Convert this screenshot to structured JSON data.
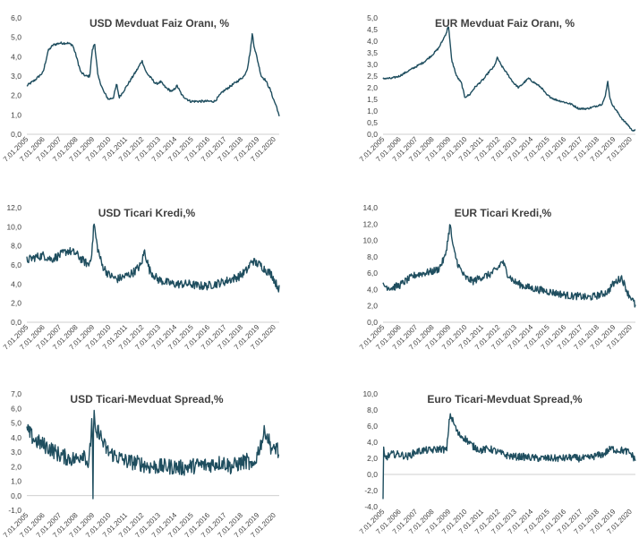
{
  "chart_data": [
    {
      "type": "line",
      "title": "USD  Mevduat Faiz Oranı, %",
      "xlabel": "",
      "ylabel": "",
      "ylim": [
        0,
        6
      ],
      "yticks": [
        "0,0",
        "1,0",
        "2,0",
        "3,0",
        "4,0",
        "5,0",
        "6,0"
      ],
      "xticks": [
        "7.01.2005",
        "7.01.2006",
        "7.01.2007",
        "7.01.2008",
        "7.01.2009",
        "7.01.2010",
        "7.01.2011",
        "7.01.2012",
        "7.01.2013",
        "7.01.2014",
        "7.01.2015",
        "7.01.2016",
        "7.01.2017",
        "7.01.2018",
        "7.01.2019",
        "7.01.2020"
      ],
      "xrange": [
        2005.0,
        2020.45
      ],
      "color": "#1f4e5f",
      "series": [
        {
          "x": [
            2005.0,
            2005.5,
            2006.0,
            2006.3,
            2006.6,
            2007.0,
            2007.5,
            2007.8,
            2008.0,
            2008.3,
            2008.6,
            2008.85,
            2009.0,
            2009.15,
            2009.35,
            2009.7,
            2010.0,
            2010.3,
            2010.5,
            2010.65,
            2010.9,
            2011.2,
            2011.5,
            2011.8,
            2012.05,
            2012.3,
            2012.6,
            2012.9,
            2013.2,
            2013.5,
            2013.9,
            2014.2,
            2014.5,
            2015.0,
            2015.5,
            2016.0,
            2016.5,
            2016.8,
            2017.0,
            2017.5,
            2018.0,
            2018.3,
            2018.5,
            2018.7,
            2018.8,
            2018.9,
            2019.1,
            2019.35,
            2019.6,
            2019.9,
            2020.1,
            2020.3,
            2020.45
          ],
          "y": [
            2.5,
            2.8,
            3.2,
            4.3,
            4.6,
            4.7,
            4.7,
            4.6,
            4.1,
            3.2,
            3.0,
            3.0,
            4.3,
            4.7,
            3.0,
            2.2,
            1.8,
            1.9,
            2.6,
            1.9,
            2.2,
            2.6,
            3.0,
            3.4,
            3.8,
            3.2,
            2.9,
            2.6,
            2.7,
            2.4,
            2.2,
            2.5,
            2.0,
            1.7,
            1.7,
            1.7,
            1.7,
            2.0,
            2.2,
            2.5,
            2.8,
            3.0,
            3.4,
            4.4,
            5.2,
            4.6,
            3.9,
            3.0,
            2.8,
            2.3,
            1.8,
            1.4,
            0.9
          ]
        }
      ]
    },
    {
      "type": "line",
      "title": "EUR Mevduat Faiz Oranı, %",
      "xlabel": "",
      "ylabel": "",
      "ylim": [
        0,
        5
      ],
      "yticks": [
        "0,0",
        "0,5",
        "1,0",
        "1,5",
        "2,0",
        "2,5",
        "3,0",
        "3,5",
        "4,0",
        "4,5",
        "5,0"
      ],
      "xticks": [
        "7.01.2005",
        "7.01.2006",
        "7.01.2007",
        "7.01.2008",
        "7.01.2009",
        "7.01.2010",
        "7.01.2011",
        "7.01.2012",
        "7.01.2013",
        "7.01.2014",
        "7.01.2015",
        "7.01.2016",
        "7.01.2017",
        "7.01.2018",
        "7.01.2019",
        "7.01.2020"
      ],
      "xrange": [
        2005.0,
        2020.45
      ],
      "color": "#1f4e5f",
      "series": [
        {
          "x": [
            2005.0,
            2005.5,
            2006.0,
            2006.5,
            2007.0,
            2007.5,
            2008.0,
            2008.4,
            2008.7,
            2008.9,
            2009.0,
            2009.2,
            2009.5,
            2009.8,
            2010.0,
            2010.3,
            2010.6,
            2010.9,
            2011.2,
            2011.5,
            2011.8,
            2012.0,
            2012.2,
            2012.5,
            2012.8,
            2013.0,
            2013.3,
            2013.6,
            2013.9,
            2014.3,
            2014.7,
            2015.0,
            2015.5,
            2016.0,
            2016.5,
            2017.0,
            2017.5,
            2018.0,
            2018.4,
            2018.6,
            2018.75,
            2018.9,
            2019.1,
            2019.4,
            2019.7,
            2020.0,
            2020.2,
            2020.45
          ],
          "y": [
            2.4,
            2.4,
            2.5,
            2.7,
            2.9,
            3.1,
            3.4,
            3.7,
            4.1,
            4.4,
            4.7,
            3.2,
            2.5,
            2.2,
            1.6,
            1.7,
            2.0,
            2.2,
            2.4,
            2.7,
            2.9,
            3.3,
            3.0,
            2.7,
            2.4,
            2.2,
            2.0,
            2.2,
            2.4,
            2.2,
            2.0,
            1.7,
            1.5,
            1.4,
            1.3,
            1.1,
            1.1,
            1.2,
            1.3,
            1.6,
            2.3,
            1.5,
            1.2,
            0.9,
            0.6,
            0.4,
            0.2,
            0.15
          ]
        }
      ]
    },
    {
      "type": "line",
      "title": "USD Ticari Kredi,%",
      "xlabel": "",
      "ylabel": "",
      "ylim": [
        0,
        12
      ],
      "yticks": [
        "0,0",
        "2,0",
        "4,0",
        "6,0",
        "8,0",
        "10,0",
        "12,0"
      ],
      "xticks": [
        "7.01.2005",
        "7.01.2006",
        "7.01.2007",
        "7.01.2008",
        "7.01.2009",
        "7.01.2010",
        "7.01.2011",
        "7.01.2012",
        "7.01.2013",
        "7.01.2014",
        "7.01.2015",
        "7.01.2016",
        "7.01.2017",
        "7.01.2018",
        "7.01.2019",
        "7.01.2020"
      ],
      "xrange": [
        2005.0,
        2020.45
      ],
      "color": "#1f4e5f",
      "series": [
        {
          "x": [
            2005.0,
            2005.5,
            2006.0,
            2006.5,
            2007.0,
            2007.5,
            2008.0,
            2008.4,
            2008.8,
            2009.0,
            2009.1,
            2009.3,
            2009.6,
            2010.0,
            2010.5,
            2011.0,
            2011.5,
            2012.0,
            2012.2,
            2012.5,
            2013.0,
            2013.5,
            2014.0,
            2014.5,
            2015.0,
            2015.5,
            2016.0,
            2016.5,
            2017.0,
            2017.5,
            2018.0,
            2018.5,
            2018.8,
            2019.0,
            2019.3,
            2019.6,
            2020.0,
            2020.2,
            2020.45
          ],
          "y": [
            6.5,
            6.8,
            7.0,
            6.6,
            7.0,
            7.5,
            7.2,
            6.5,
            6.0,
            7.5,
            10.5,
            8.0,
            6.0,
            5.0,
            4.5,
            4.8,
            5.2,
            6.0,
            7.5,
            5.5,
            4.5,
            4.2,
            4.0,
            4.0,
            4.0,
            3.8,
            3.8,
            4.0,
            4.2,
            4.5,
            4.8,
            5.5,
            6.5,
            6.2,
            6.0,
            5.5,
            5.0,
            4.2,
            3.5
          ]
        }
      ]
    },
    {
      "type": "line",
      "title": "EUR Ticari Kredi,%",
      "xlabel": "",
      "ylabel": "",
      "ylim": [
        0,
        14
      ],
      "yticks": [
        "0,0",
        "2,0",
        "4,0",
        "6,0",
        "8,0",
        "10,0",
        "12,0",
        "14,0"
      ],
      "xticks": [
        "7.01.2005",
        "7.01.2006",
        "7.01.2007",
        "7.01.2008",
        "7.01.2009",
        "7.01.2010",
        "7.01.2011",
        "7.01.2012",
        "7.01.2013",
        "7.01.2014",
        "7.01.2015",
        "7.01.2016",
        "7.01.2017",
        "7.01.2018",
        "7.01.2019",
        "7.01.2020"
      ],
      "xrange": [
        2005.0,
        2020.45
      ],
      "color": "#1f4e5f",
      "series": [
        {
          "x": [
            2005.0,
            2005.5,
            2006.0,
            2006.5,
            2007.0,
            2007.5,
            2008.0,
            2008.4,
            2008.8,
            2009.0,
            2009.1,
            2009.3,
            2009.6,
            2010.0,
            2010.5,
            2011.0,
            2011.5,
            2012.0,
            2012.3,
            2012.6,
            2013.0,
            2013.5,
            2014.0,
            2014.5,
            2015.0,
            2015.5,
            2016.0,
            2016.5,
            2017.0,
            2017.5,
            2018.0,
            2018.5,
            2018.8,
            2019.0,
            2019.3,
            2019.6,
            2020.0,
            2020.2,
            2020.45
          ],
          "y": [
            4.5,
            4.2,
            4.5,
            5.2,
            5.8,
            6.0,
            6.2,
            6.5,
            8.0,
            10.5,
            12.0,
            9.0,
            7.0,
            5.5,
            5.0,
            5.5,
            5.8,
            6.5,
            7.5,
            6.0,
            5.0,
            4.5,
            4.2,
            4.0,
            3.8,
            3.6,
            3.4,
            3.2,
            3.2,
            3.0,
            3.2,
            3.5,
            3.8,
            4.5,
            5.0,
            5.5,
            3.5,
            3.0,
            2.0
          ]
        }
      ]
    },
    {
      "type": "line",
      "title": "USD Ticari-Mevduat Spread,%",
      "xlabel": "",
      "ylabel": "",
      "ylim": [
        -1,
        7
      ],
      "yticks": [
        "-1,0",
        "0,0",
        "1,0",
        "2,0",
        "3,0",
        "4,0",
        "5,0",
        "6,0",
        "7,0"
      ],
      "xticks": [
        "7.01.2005",
        "7.01.2006",
        "7.01.2007",
        "7.01.2008",
        "7.01.2009",
        "7.01.2010",
        "7.01.2011",
        "7.01.2012",
        "7.01.2013",
        "7.01.2014",
        "7.01.2015",
        "7.01.2016",
        "7.01.2017",
        "7.01.2018",
        "7.01.2019",
        "7.01.2020"
      ],
      "xrange": [
        2005.0,
        2020.45
      ],
      "color": "#1f4e5f",
      "series": [
        {
          "x": [
            2005.0,
            2005.5,
            2006.0,
            2006.5,
            2007.0,
            2007.5,
            2008.0,
            2008.5,
            2008.8,
            2009.0,
            2009.05,
            2009.1,
            2009.2,
            2009.4,
            2009.7,
            2010.0,
            2010.5,
            2011.0,
            2011.5,
            2012.0,
            2012.5,
            2013.0,
            2013.5,
            2014.0,
            2014.5,
            2015.0,
            2015.5,
            2016.0,
            2016.5,
            2017.0,
            2017.5,
            2018.0,
            2018.5,
            2018.8,
            2019.0,
            2019.3,
            2019.6,
            2019.9,
            2020.1,
            2020.3,
            2020.45
          ],
          "y": [
            4.5,
            3.8,
            3.5,
            3.2,
            2.8,
            2.6,
            2.5,
            3.0,
            2.0,
            5.5,
            -0.5,
            6.2,
            4.0,
            4.5,
            3.5,
            3.0,
            2.7,
            2.4,
            2.3,
            2.2,
            2.0,
            2.0,
            2.0,
            2.0,
            1.9,
            2.0,
            2.1,
            2.1,
            2.2,
            2.3,
            2.0,
            2.2,
            2.4,
            1.8,
            2.5,
            3.5,
            4.5,
            3.5,
            3.0,
            3.5,
            2.5
          ]
        }
      ]
    },
    {
      "type": "line",
      "title": "Euro Ticari-Mevduat Spread,%",
      "xlabel": "",
      "ylabel": "",
      "ylim": [
        -4,
        10
      ],
      "yticks": [
        "-4,0",
        "-2,0",
        "0,0",
        "2,0",
        "4,0",
        "6,0",
        "8,0",
        "10,0"
      ],
      "xticks": [
        "7.01.2005",
        "7.01.2006",
        "7.01.2007",
        "7.01.2008",
        "7.01.2009",
        "7.01.2010",
        "7.01.2011",
        "7.01.2012",
        "7.01.2013",
        "7.01.2014",
        "7.01.2015",
        "7.01.2016",
        "7.01.2017",
        "7.01.2018",
        "7.01.2019",
        "7.01.2020"
      ],
      "xrange": [
        2005.0,
        2020.45
      ],
      "color": "#1f4e5f",
      "series": [
        {
          "x": [
            2005.0,
            2005.02,
            2005.1,
            2005.5,
            2006.0,
            2006.5,
            2007.0,
            2007.5,
            2008.0,
            2008.5,
            2008.9,
            2009.0,
            2009.1,
            2009.3,
            2009.6,
            2010.0,
            2010.5,
            2011.0,
            2011.5,
            2012.0,
            2012.5,
            2013.0,
            2013.5,
            2014.0,
            2014.5,
            2015.0,
            2015.5,
            2016.0,
            2016.5,
            2017.0,
            2017.5,
            2018.0,
            2018.5,
            2018.8,
            2019.0,
            2019.3,
            2019.6,
            2020.0,
            2020.2,
            2020.45
          ],
          "y": [
            -3.5,
            3.5,
            2.0,
            2.5,
            2.5,
            2.2,
            2.8,
            3.0,
            3.0,
            3.2,
            3.0,
            5.5,
            7.5,
            6.5,
            5.0,
            4.5,
            3.5,
            3.0,
            3.2,
            2.8,
            2.4,
            2.2,
            2.2,
            2.1,
            2.0,
            2.0,
            2.0,
            2.0,
            2.1,
            2.0,
            2.0,
            2.3,
            2.5,
            3.0,
            3.2,
            3.0,
            3.0,
            2.8,
            2.5,
            1.8
          ]
        }
      ]
    }
  ]
}
